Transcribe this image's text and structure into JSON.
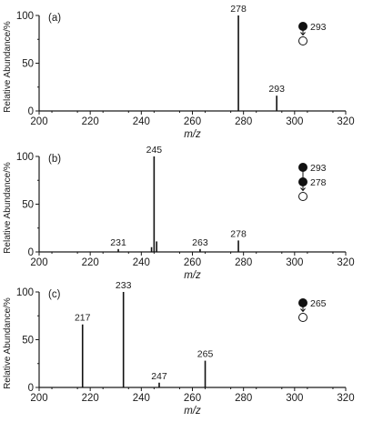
{
  "chart_data": [
    {
      "type": "bar",
      "panel_label": "(a)",
      "xlabel": "m/z",
      "ylabel": "Relative Abundance/%",
      "xlim": [
        200,
        320
      ],
      "ylim": [
        0,
        100
      ],
      "xticks": [
        "200",
        "220",
        "240",
        "260",
        "280",
        "300",
        "320"
      ],
      "yticks": [
        "0",
        "50",
        "100"
      ],
      "peaks": [
        {
          "x": 278,
          "y": 100,
          "label": "278"
        },
        {
          "x": 293,
          "y": 16,
          "label": "293"
        }
      ],
      "legend": {
        "precursors": [
          "293"
        ],
        "product": ""
      }
    },
    {
      "type": "bar",
      "panel_label": "(b)",
      "xlabel": "m/z",
      "ylabel": "Relative Abundance/%",
      "xlim": [
        200,
        320
      ],
      "ylim": [
        0,
        100
      ],
      "xticks": [
        "200",
        "220",
        "240",
        "260",
        "280",
        "300",
        "320"
      ],
      "yticks": [
        "0",
        "50",
        "100"
      ],
      "peaks": [
        {
          "x": 231,
          "y": 3,
          "label": "231"
        },
        {
          "x": 244,
          "y": 5,
          "label": ""
        },
        {
          "x": 245,
          "y": 100,
          "label": "245"
        },
        {
          "x": 246,
          "y": 11,
          "label": ""
        },
        {
          "x": 263,
          "y": 3,
          "label": "263"
        },
        {
          "x": 278,
          "y": 12,
          "label": "278"
        }
      ],
      "legend": {
        "precursors": [
          "293",
          "278"
        ],
        "product": ""
      }
    },
    {
      "type": "bar",
      "panel_label": "(c)",
      "xlabel": "m/z",
      "ylabel": "Relative Abundance/%",
      "xlim": [
        200,
        320
      ],
      "ylim": [
        0,
        100
      ],
      "xticks": [
        "200",
        "220",
        "240",
        "260",
        "280",
        "300",
        "320"
      ],
      "yticks": [
        "0",
        "50",
        "100"
      ],
      "peaks": [
        {
          "x": 217,
          "y": 66,
          "label": "217"
        },
        {
          "x": 233,
          "y": 100,
          "label": "233"
        },
        {
          "x": 247,
          "y": 5,
          "label": "247"
        },
        {
          "x": 265,
          "y": 28,
          "label": "265"
        }
      ],
      "legend": {
        "precursors": [
          "265"
        ],
        "product": ""
      }
    }
  ]
}
